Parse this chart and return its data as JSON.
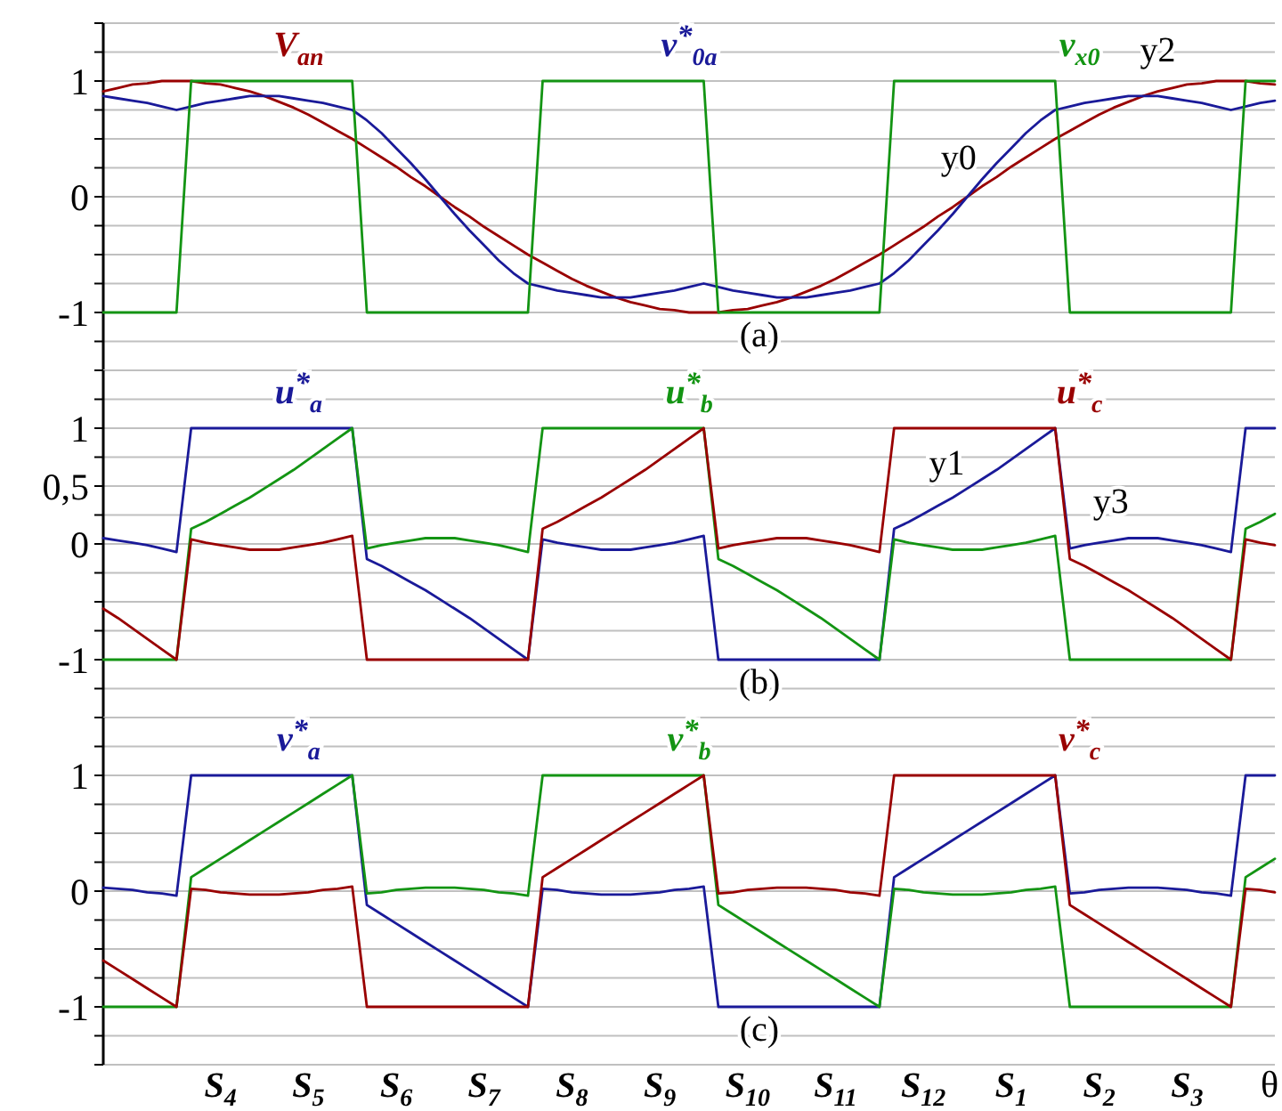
{
  "chart_data": [
    {
      "type": "line",
      "ylim": [
        -1.5,
        1.5
      ],
      "grid": "y",
      "tick_labels": "y",
      "categories": [
        null,
        null,
        null,
        null,
        null,
        null,
        null,
        null,
        null,
        null,
        null,
        null,
        null,
        null,
        null,
        null,
        null,
        null,
        null,
        null,
        null,
        null,
        null,
        null,
        null,
        null,
        null,
        null,
        null,
        null,
        null,
        null,
        null,
        null,
        null,
        null,
        null,
        null,
        null,
        null,
        null,
        null,
        null,
        null,
        null,
        null,
        null,
        null,
        null,
        null,
        null,
        null,
        null,
        null,
        null,
        null,
        null,
        null,
        null,
        null,
        null,
        null,
        null,
        null,
        null,
        null,
        null,
        null,
        null,
        null,
        null,
        null,
        null,
        null,
        null,
        null,
        null,
        null,
        null,
        null,
        null
      ],
      "yticks": [
        {
          "value": -1.5,
          "label": null
        },
        {
          "value": -1.25,
          "label": null
        },
        -1,
        {
          "value": -0.75,
          "label": null
        },
        {
          "value": -0.5,
          "label": null
        },
        {
          "value": -0.25,
          "label": null
        },
        0,
        {
          "value": 0.25,
          "label": null
        },
        {
          "value": 0.5,
          "label": null
        },
        {
          "value": 0.75,
          "label": null
        },
        1,
        {
          "value": 1.25,
          "label": null
        },
        {
          "value": 1.5,
          "label": null
        }
      ],
      "series": [
        {
          "name": "V$_{an}$",
          "color": "#990000",
          "values": [
            0.91,
            0.94,
            0.97,
            0.98,
            1,
            1,
            1,
            0.98,
            0.97,
            0.94,
            0.91,
            0.87,
            0.82,
            0.77,
            0.71,
            0.64,
            0.57,
            0.5,
            0.42,
            0.34,
            0.26,
            0.17,
            0.09,
            0,
            -0.09,
            -0.17,
            -0.26,
            -0.34,
            -0.42,
            -0.5,
            -0.57,
            -0.64,
            -0.71,
            -0.77,
            -0.82,
            -0.87,
            -0.91,
            -0.94,
            -0.97,
            -0.98,
            -1,
            -1,
            -1,
            -0.98,
            -0.97,
            -0.94,
            -0.91,
            -0.87,
            -0.82,
            -0.77,
            -0.71,
            -0.64,
            -0.57,
            -0.5,
            -0.42,
            -0.34,
            -0.26,
            -0.17,
            -0.09,
            0,
            0.09,
            0.17,
            0.26,
            0.34,
            0.42,
            0.5,
            0.57,
            0.64,
            0.71,
            0.77,
            0.82,
            0.87,
            0.91,
            0.94,
            0.97,
            0.98,
            1,
            1,
            1,
            0.98,
            0.97
          ]
        },
        {
          "name": "v$^{*}$$_{0a}$",
          "color": "#1a1a99",
          "values": [
            0.87,
            0.85,
            0.83,
            0.81,
            0.78,
            0.75,
            0.78,
            0.81,
            0.83,
            0.85,
            0.87,
            0.87,
            0.87,
            0.85,
            0.83,
            0.81,
            0.78,
            0.75,
            0.66,
            0.55,
            0.42,
            0.29,
            0.15,
            0,
            -0.15,
            -0.29,
            -0.42,
            -0.55,
            -0.66,
            -0.75,
            -0.78,
            -0.81,
            -0.83,
            -0.85,
            -0.87,
            -0.87,
            -0.87,
            -0.85,
            -0.83,
            -0.81,
            -0.78,
            -0.75,
            -0.78,
            -0.81,
            -0.83,
            -0.85,
            -0.87,
            -0.87,
            -0.87,
            -0.85,
            -0.83,
            -0.81,
            -0.78,
            -0.75,
            -0.66,
            -0.55,
            -0.42,
            -0.29,
            -0.15,
            0,
            0.15,
            0.29,
            0.42,
            0.55,
            0.66,
            0.75,
            0.78,
            0.81,
            0.83,
            0.85,
            0.87,
            0.87,
            0.87,
            0.85,
            0.83,
            0.81,
            0.78,
            0.75,
            0.78,
            0.81,
            0.83
          ]
        },
        {
          "name": "v$_{x0}$",
          "color": "#139413",
          "values": [
            -1,
            -1,
            -1,
            -1,
            -1,
            -1,
            1,
            1,
            1,
            1,
            1,
            1,
            1,
            1,
            1,
            1,
            1,
            1,
            -1,
            -1,
            -1,
            -1,
            -1,
            -1,
            -1,
            -1,
            -1,
            -1,
            -1,
            -1,
            1,
            1,
            1,
            1,
            1,
            1,
            1,
            1,
            1,
            1,
            1,
            1,
            -1,
            -1,
            -1,
            -1,
            -1,
            -1,
            -1,
            -1,
            -1,
            -1,
            -1,
            -1,
            1,
            1,
            1,
            1,
            1,
            1,
            1,
            1,
            1,
            1,
            1,
            1,
            -1,
            -1,
            -1,
            -1,
            -1,
            -1,
            -1,
            -1,
            -1,
            -1,
            -1,
            -1,
            1,
            1,
            1
          ]
        }
      ],
      "annotations": [
        "(a)",
        "y0",
        "y2"
      ]
    },
    {
      "type": "line",
      "ylim": [
        -1.5,
        1.5
      ],
      "grid": "y",
      "tick_labels": "y",
      "categories": [
        null,
        null,
        null,
        null,
        null,
        null,
        null,
        null,
        null,
        null,
        null,
        null,
        null,
        null,
        null,
        null,
        null,
        null,
        null,
        null,
        null,
        null,
        null,
        null,
        null,
        null,
        null,
        null,
        null,
        null,
        null,
        null,
        null,
        null,
        null,
        null,
        null,
        null,
        null,
        null,
        null,
        null,
        null,
        null,
        null,
        null,
        null,
        null,
        null,
        null,
        null,
        null,
        null,
        null,
        null,
        null,
        null,
        null,
        null,
        null,
        null,
        null,
        null,
        null,
        null,
        null,
        null,
        null,
        null,
        null,
        null,
        null,
        null,
        null,
        null,
        null,
        null,
        null,
        null,
        null,
        null
      ],
      "yticks": [
        {
          "value": -1.5,
          "label": null
        },
        {
          "value": -1.25,
          "label": null
        },
        -1,
        {
          "value": -0.75,
          "label": null
        },
        {
          "value": -0.5,
          "label": null
        },
        {
          "value": -0.25,
          "label": null
        },
        0,
        {
          "value": 0.25,
          "label": null
        },
        {
          "value": 0.5,
          "label": "0,5"
        },
        {
          "value": 0.75,
          "label": null
        },
        1,
        {
          "value": 1.25,
          "label": null
        },
        {
          "value": 1.5,
          "label": null
        }
      ],
      "series": [
        {
          "name": "u$^{*}$$_{a}$",
          "color": "#1a1a99",
          "values": [
            0.05,
            0.03,
            0.01,
            -0.01,
            -0.04,
            -0.07,
            1,
            1,
            1,
            1,
            1,
            1,
            1,
            1,
            1,
            1,
            1,
            1,
            -0.13,
            -0.19,
            -0.26,
            -0.33,
            -0.4,
            -0.48,
            -0.56,
            -0.64,
            -0.73,
            -0.82,
            -0.91,
            -1,
            0.04,
            0.01,
            -0.01,
            -0.03,
            -0.05,
            -0.05,
            -0.05,
            -0.03,
            -0.01,
            0.01,
            0.04,
            0.07,
            -1,
            -1,
            -1,
            -1,
            -1,
            -1,
            -1,
            -1,
            -1,
            -1,
            -1,
            -1,
            0.13,
            0.19,
            0.26,
            0.33,
            0.4,
            0.48,
            0.56,
            0.64,
            0.73,
            0.82,
            0.91,
            1,
            -0.04,
            -0.01,
            0.01,
            0.03,
            0.05,
            0.05,
            0.05,
            0.03,
            0.01,
            -0.01,
            -0.04,
            -0.07,
            1,
            1,
            1
          ]
        },
        {
          "name": "u$^{*}$$_{b}$",
          "color": "#139413",
          "values": [
            -1,
            -1,
            -1,
            -1,
            -1,
            -1,
            0.13,
            0.19,
            0.26,
            0.33,
            0.4,
            0.48,
            0.56,
            0.64,
            0.73,
            0.82,
            0.91,
            1,
            -0.04,
            -0.01,
            0.01,
            0.03,
            0.05,
            0.05,
            0.05,
            0.03,
            0.01,
            -0.01,
            -0.04,
            -0.07,
            1,
            1,
            1,
            1,
            1,
            1,
            1,
            1,
            1,
            1,
            1,
            1,
            -0.13,
            -0.19,
            -0.26,
            -0.33,
            -0.4,
            -0.48,
            -0.56,
            -0.64,
            -0.73,
            -0.82,
            -0.91,
            -1,
            0.04,
            0.01,
            -0.01,
            -0.03,
            -0.05,
            -0.05,
            -0.05,
            -0.03,
            -0.01,
            0.01,
            0.04,
            0.07,
            -1,
            -1,
            -1,
            -1,
            -1,
            -1,
            -1,
            -1,
            -1,
            -1,
            -1,
            -1,
            0.13,
            0.19,
            0.26
          ]
        },
        {
          "name": "u$^{*}$$_{c}$",
          "color": "#990000",
          "values": [
            -0.56,
            -0.64,
            -0.73,
            -0.82,
            -0.91,
            -1,
            0.04,
            0.01,
            -0.01,
            -0.03,
            -0.05,
            -0.05,
            -0.05,
            -0.03,
            -0.01,
            0.01,
            0.04,
            0.07,
            -1,
            -1,
            -1,
            -1,
            -1,
            -1,
            -1,
            -1,
            -1,
            -1,
            -1,
            -1,
            0.13,
            0.19,
            0.26,
            0.33,
            0.4,
            0.48,
            0.56,
            0.64,
            0.73,
            0.82,
            0.91,
            1,
            -0.04,
            -0.01,
            0.01,
            0.03,
            0.05,
            0.05,
            0.05,
            0.03,
            0.01,
            -0.01,
            -0.04,
            -0.07,
            1,
            1,
            1,
            1,
            1,
            1,
            1,
            1,
            1,
            1,
            1,
            1,
            -0.13,
            -0.19,
            -0.26,
            -0.33,
            -0.4,
            -0.48,
            -0.56,
            -0.64,
            -0.73,
            -0.82,
            -0.91,
            -1,
            0.04,
            0.01,
            -0.01
          ]
        }
      ],
      "annotations": [
        "(b)",
        "y1",
        "y3"
      ]
    },
    {
      "type": "line",
      "ylim": [
        -1.5,
        1.5
      ],
      "grid": "y",
      "xlabel": "θ",
      "categories": [
        null,
        null,
        null,
        null,
        null,
        null,
        null,
        null,
        "S$_{4}$",
        null,
        null,
        null,
        null,
        null,
        "S$_{5}$",
        null,
        null,
        null,
        null,
        null,
        "S$_{6}$",
        null,
        null,
        null,
        null,
        null,
        "S$_{7}$",
        null,
        null,
        null,
        null,
        null,
        "S$_{8}$",
        null,
        null,
        null,
        null,
        null,
        "S$_{9}$",
        null,
        null,
        null,
        null,
        null,
        "S$_{10}$",
        null,
        null,
        null,
        null,
        null,
        "S$_{11}$",
        null,
        null,
        null,
        null,
        null,
        "S$_{12}$",
        null,
        null,
        null,
        null,
        null,
        "S$_{1}$",
        null,
        null,
        null,
        null,
        null,
        "S$_{2}$",
        null,
        null,
        null,
        null,
        null,
        "S$_{3}$",
        null,
        null,
        null,
        null,
        null,
        null
      ],
      "yticks": [
        {
          "value": -1.5,
          "label": null
        },
        {
          "value": -1.25,
          "label": null
        },
        -1,
        {
          "value": -0.75,
          "label": null
        },
        {
          "value": -0.5,
          "label": null
        },
        {
          "value": -0.25,
          "label": null
        },
        0,
        {
          "value": 0.25,
          "label": null
        },
        {
          "value": 0.5,
          "label": null
        },
        {
          "value": 0.75,
          "label": null
        },
        1,
        {
          "value": 1.25,
          "label": null
        },
        {
          "value": 1.5,
          "label": null
        }
      ],
      "series": [
        {
          "name": "v$^{*}$$_{a}$",
          "color": "#1a1a99",
          "values": [
            0.03,
            0.02,
            0.01,
            -0.01,
            -0.02,
            -0.04,
            1,
            1,
            1,
            1,
            1,
            1,
            1,
            1,
            1,
            1,
            1,
            1,
            -0.12,
            -0.2,
            -0.28,
            -0.36,
            -0.44,
            -0.52,
            -0.6,
            -0.68,
            -0.76,
            -0.84,
            -0.92,
            -1,
            0.02,
            0.01,
            -0.01,
            -0.02,
            -0.03,
            -0.03,
            -0.03,
            -0.02,
            -0.01,
            0.01,
            0.02,
            0.04,
            -1,
            -1,
            -1,
            -1,
            -1,
            -1,
            -1,
            -1,
            -1,
            -1,
            -1,
            -1,
            0.12,
            0.2,
            0.28,
            0.36,
            0.44,
            0.52,
            0.6,
            0.68,
            0.76,
            0.84,
            0.92,
            1,
            -0.02,
            -0.01,
            0.01,
            0.02,
            0.03,
            0.03,
            0.03,
            0.02,
            0.01,
            -0.01,
            -0.02,
            -0.04,
            1,
            1,
            1
          ]
        },
        {
          "name": "v$^{*}$$_{b}$",
          "color": "#139413",
          "values": [
            -1,
            -1,
            -1,
            -1,
            -1,
            -1,
            0.12,
            0.2,
            0.28,
            0.36,
            0.44,
            0.52,
            0.6,
            0.68,
            0.76,
            0.84,
            0.92,
            1,
            -0.02,
            -0.01,
            0.01,
            0.02,
            0.03,
            0.03,
            0.03,
            0.02,
            0.01,
            -0.01,
            -0.02,
            -0.04,
            1,
            1,
            1,
            1,
            1,
            1,
            1,
            1,
            1,
            1,
            1,
            1,
            -0.12,
            -0.2,
            -0.28,
            -0.36,
            -0.44,
            -0.52,
            -0.6,
            -0.68,
            -0.76,
            -0.84,
            -0.92,
            -1,
            0.02,
            0.01,
            -0.01,
            -0.02,
            -0.03,
            -0.03,
            -0.03,
            -0.02,
            -0.01,
            0.01,
            0.02,
            0.04,
            -1,
            -1,
            -1,
            -1,
            -1,
            -1,
            -1,
            -1,
            -1,
            -1,
            -1,
            -1,
            0.12,
            0.2,
            0.28
          ]
        },
        {
          "name": "v$^{*}$$_{c}$",
          "color": "#990000",
          "values": [
            -0.6,
            -0.68,
            -0.76,
            -0.84,
            -0.92,
            -1,
            0.02,
            0.01,
            -0.01,
            -0.02,
            -0.03,
            -0.03,
            -0.03,
            -0.02,
            -0.01,
            0.01,
            0.02,
            0.04,
            -1,
            -1,
            -1,
            -1,
            -1,
            -1,
            -1,
            -1,
            -1,
            -1,
            -1,
            -1,
            0.12,
            0.2,
            0.28,
            0.36,
            0.44,
            0.52,
            0.6,
            0.68,
            0.76,
            0.84,
            0.92,
            1,
            -0.02,
            -0.01,
            0.01,
            0.02,
            0.03,
            0.03,
            0.03,
            0.02,
            0.01,
            -0.01,
            -0.02,
            -0.04,
            1,
            1,
            1,
            1,
            1,
            1,
            1,
            1,
            1,
            1,
            1,
            1,
            -0.12,
            -0.2,
            -0.28,
            -0.36,
            -0.44,
            -0.52,
            -0.6,
            -0.68,
            -0.76,
            -0.84,
            -0.92,
            -1,
            0.02,
            0.01,
            -0.01
          ]
        }
      ],
      "annotations": [
        "(c)"
      ]
    }
  ]
}
